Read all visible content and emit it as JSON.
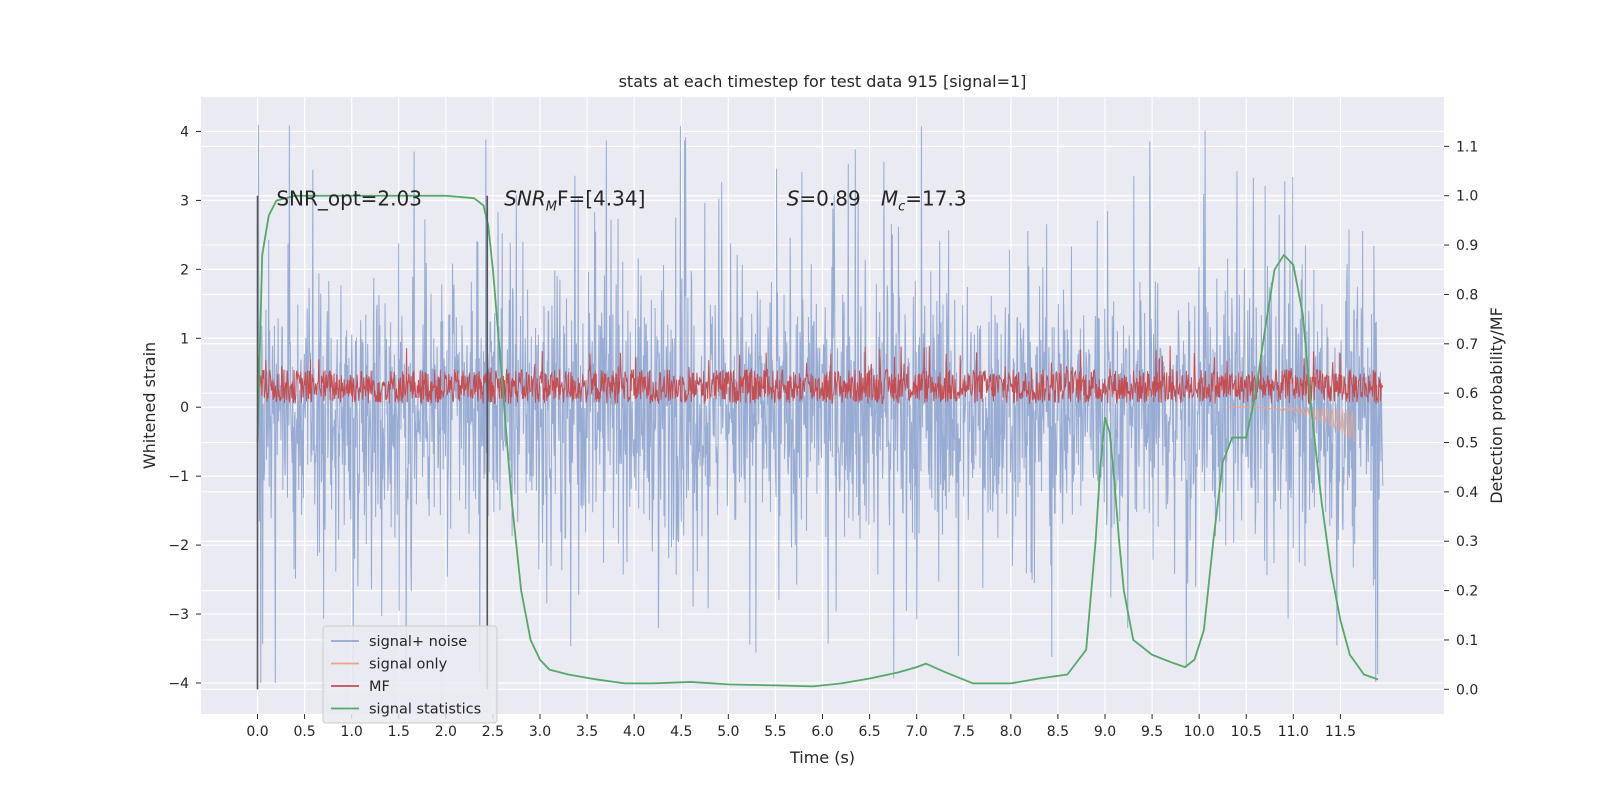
{
  "chart_data": {
    "type": "line",
    "title": "stats at each timestep for test data 915 [signal=1]",
    "xlabel": "Time (s)",
    "ylabel": "Whitened strain",
    "y2label": "Detection probability/MF",
    "xlim": [
      -0.6,
      12.6
    ],
    "ylim": [
      -4.45,
      4.5
    ],
    "y2lim": [
      -0.05,
      1.2
    ],
    "x_ticks": [
      "0.0",
      "0.5",
      "1.0",
      "1.5",
      "2.0",
      "2.5",
      "3.0",
      "3.5",
      "4.0",
      "4.5",
      "5.0",
      "5.5",
      "6.0",
      "6.5",
      "7.0",
      "7.5",
      "8.0",
      "8.5",
      "9.0",
      "9.5",
      "10.0",
      "10.5",
      "11.0",
      "11.5"
    ],
    "y_ticks": [
      "−4",
      "−3",
      "−2",
      "−1",
      "0",
      "1",
      "2",
      "3",
      "4"
    ],
    "y2_ticks": [
      "0.0",
      "0.1",
      "0.2",
      "0.3",
      "0.4",
      "0.5",
      "0.6",
      "0.7",
      "0.8",
      "0.9",
      "1.0",
      "1.1"
    ],
    "grid": true,
    "legend_position": "bottom-left",
    "annotations": {
      "snr_opt": "SNR_opt=2.03",
      "snr_mf_main": "SNR",
      "snr_mf_sub": "M",
      "snr_mf_rest": "F=[4.34]",
      "s_main": "S",
      "s_rest": "=0.89",
      "mc_main": "M",
      "mc_sub": "c",
      "mc_rest": "=17.3"
    },
    "window_markers": {
      "x": [
        0.0,
        2.44
      ],
      "y2_range": [
        0.0,
        1.0
      ]
    },
    "series": [
      {
        "name": "signal+ noise",
        "color": "#92a8d1",
        "axis": "left",
        "envelope": {
          "x": [
            0.0,
            11.95
          ],
          "upper_typical": 1.6,
          "lower_typical": -1.6,
          "peak_max": 4.1,
          "peak_min": -4.0
        }
      },
      {
        "name": "signal only",
        "color": "#e8a58a",
        "axis": "left",
        "visible_range": [
          10.3,
          11.65
        ],
        "min_value": -0.5
      },
      {
        "name": "MF",
        "color": "#c44e52",
        "axis": "left",
        "band": {
          "x": [
            0.0,
            11.95
          ],
          "low": 0.05,
          "high": 0.55,
          "peak_max": 0.9
        }
      },
      {
        "name": "signal statistics",
        "color": "#55a868",
        "axis": "right",
        "x": [
          0.0,
          0.05,
          0.12,
          0.2,
          0.4,
          0.8,
          1.2,
          2.0,
          2.3,
          2.4,
          2.45,
          2.5,
          2.6,
          2.7,
          2.8,
          2.9,
          3.0,
          3.1,
          3.3,
          3.6,
          3.9,
          4.2,
          4.6,
          5.0,
          5.5,
          5.9,
          6.2,
          6.5,
          6.8,
          7.0,
          7.1,
          7.3,
          7.6,
          8.0,
          8.3,
          8.6,
          8.8,
          8.9,
          8.95,
          9.0,
          9.05,
          9.1,
          9.15,
          9.2,
          9.3,
          9.5,
          9.7,
          9.85,
          9.95,
          10.05,
          10.15,
          10.25,
          10.35,
          10.5,
          10.6,
          10.7,
          10.8,
          10.9,
          11.0,
          11.1,
          11.2,
          11.3,
          11.4,
          11.5,
          11.6,
          11.75,
          11.9
        ],
        "values": [
          0.5,
          0.88,
          0.96,
          0.99,
          1.0,
          1.0,
          1.0,
          1.0,
          0.995,
          0.98,
          0.94,
          0.85,
          0.62,
          0.38,
          0.2,
          0.1,
          0.06,
          0.04,
          0.03,
          0.02,
          0.012,
          0.012,
          0.015,
          0.01,
          0.008,
          0.006,
          0.012,
          0.022,
          0.034,
          0.045,
          0.052,
          0.035,
          0.012,
          0.012,
          0.022,
          0.03,
          0.08,
          0.3,
          0.45,
          0.55,
          0.52,
          0.42,
          0.3,
          0.2,
          0.1,
          0.07,
          0.055,
          0.045,
          0.06,
          0.12,
          0.3,
          0.46,
          0.51,
          0.51,
          0.6,
          0.73,
          0.85,
          0.88,
          0.86,
          0.76,
          0.55,
          0.38,
          0.24,
          0.14,
          0.07,
          0.03,
          0.02
        ]
      }
    ]
  }
}
